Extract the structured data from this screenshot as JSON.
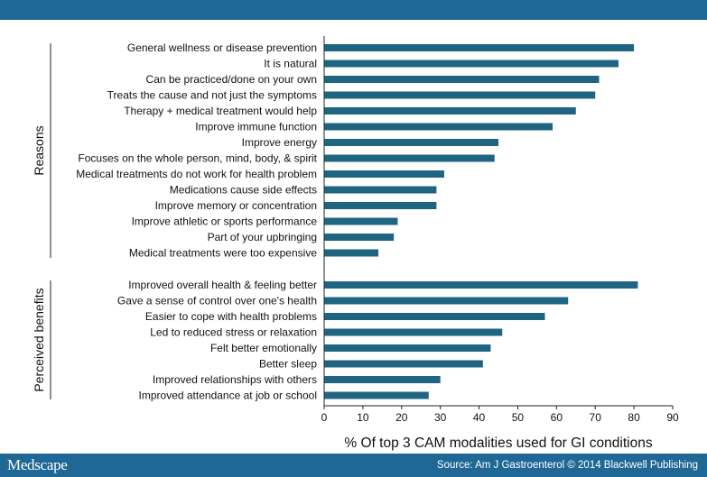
{
  "header": {},
  "footer": {
    "logo": "Medscape",
    "source": "Source: Am J Gastroenterol © 2014 Blackwell Publishing"
  },
  "chart_data": {
    "type": "bar",
    "orientation": "horizontal",
    "xlabel": "% Of top 3 CAM modalities used for GI conditions",
    "xlim": [
      0,
      90
    ],
    "xticks": [
      0,
      10,
      20,
      30,
      40,
      50,
      60,
      70,
      80,
      90
    ],
    "bar_color": "#1f6582",
    "grid": false,
    "groups": [
      {
        "label": "Reasons",
        "categories": [
          "General wellness or disease prevention",
          "It is natural",
          "Can be practiced/done on your own",
          "Treats the cause and not just the symptoms",
          "Therapy + medical treatment would help",
          "Improve immune function",
          "Improve energy",
          "Focuses on the whole person, mind, body, & spirit",
          "Medical treatments do not work for health problem",
          "Medications cause side effects",
          "Improve memory or concentration",
          "Improve athletic or sports performance",
          "Part of your upbringing",
          "Medical treatments were too expensive"
        ],
        "values": [
          80,
          76,
          71,
          70,
          65,
          59,
          45,
          44,
          31,
          29,
          29,
          19,
          18,
          14
        ]
      },
      {
        "label": "Perceived benefits",
        "categories": [
          "Improved overall health & feeling better",
          "Gave a sense of control over one's health",
          "Easier to cope with health problems",
          "Led to reduced stress or relaxation",
          "Felt better emotionally",
          "Better sleep",
          "Improved relationships with others",
          "Improved attendance at job or school"
        ],
        "values": [
          81,
          63,
          57,
          46,
          43,
          41,
          30,
          27
        ]
      }
    ]
  }
}
